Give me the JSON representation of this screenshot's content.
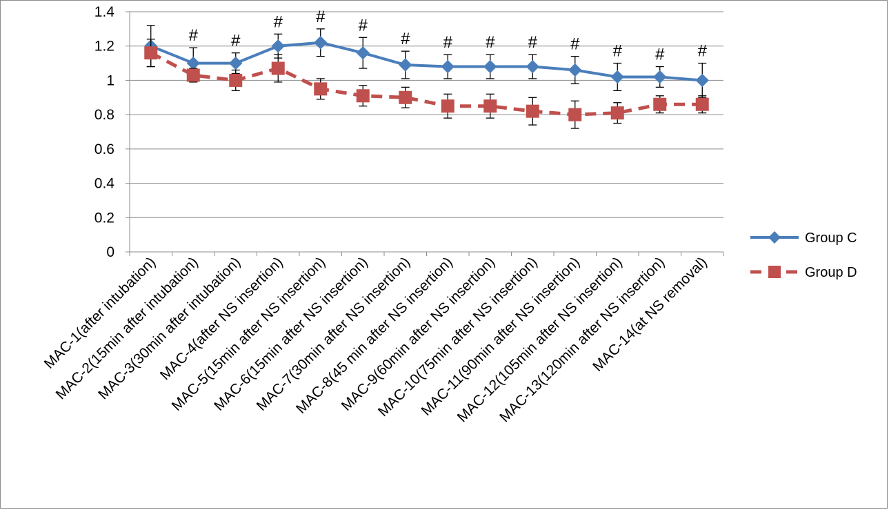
{
  "chart_data": {
    "type": "line",
    "title": "",
    "xlabel": "",
    "ylabel": "",
    "ylim": [
      0,
      1.4
    ],
    "yticks": [
      0,
      0.2,
      0.4,
      0.6,
      0.8,
      1,
      1.2,
      1.4
    ],
    "ytick_labels": [
      "0",
      "0.2",
      "0.4",
      "0.6",
      "0.8",
      "1",
      "1.2",
      "1.4"
    ],
    "grid": "horizontal",
    "legend_position": "right",
    "categories": [
      "MAC-1(after intubation)",
      "MAC-2(15min after intubation)",
      "MAC-3(30min after intubation)",
      "MAC-4(after NS insertion)",
      "MAC-5(15min after NS insertion)",
      "MAC-6(15min after NS insertion)",
      "MAC-7(30min after NS insertion)",
      "MAC-8(45 min after NS insertion)",
      "MAC-9(60min after NS insertion)",
      "MAC-10(75min after NS insertion)",
      "MAC-11(90min after NS insertion)",
      "MAC-12(105min after NS insertion)",
      "MAC-13(120min after NS insertion)",
      "MAC-14(at NS removal)"
    ],
    "series": [
      {
        "name": "Group C",
        "color": "#4a7ebb",
        "marker": "diamond",
        "line_style": "solid",
        "values": [
          1.2,
          1.1,
          1.1,
          1.2,
          1.22,
          1.16,
          1.09,
          1.08,
          1.08,
          1.08,
          1.06,
          1.02,
          1.02,
          1.0
        ],
        "error": [
          0.12,
          0.09,
          0.06,
          0.07,
          0.08,
          0.09,
          0.08,
          0.07,
          0.07,
          0.07,
          0.08,
          0.08,
          0.06,
          0.1
        ]
      },
      {
        "name": "Group D",
        "color": "#c0504d",
        "marker": "square",
        "line_style": "dashed",
        "values": [
          1.16,
          1.03,
          1.0,
          1.07,
          0.95,
          0.91,
          0.9,
          0.85,
          0.85,
          0.82,
          0.8,
          0.81,
          0.86,
          0.86
        ],
        "error": [
          0.08,
          0.04,
          0.06,
          0.08,
          0.06,
          0.06,
          0.06,
          0.07,
          0.07,
          0.08,
          0.08,
          0.06,
          0.05,
          0.05
        ]
      }
    ],
    "annotation_symbol": "#",
    "annotations": [
      {
        "index": 1,
        "text": "#"
      },
      {
        "index": 2,
        "text": "#"
      },
      {
        "index": 3,
        "text": "#"
      },
      {
        "index": 4,
        "text": "#"
      },
      {
        "index": 5,
        "text": "#"
      },
      {
        "index": 6,
        "text": "#"
      },
      {
        "index": 7,
        "text": "#"
      },
      {
        "index": 8,
        "text": "#"
      },
      {
        "index": 9,
        "text": "#"
      },
      {
        "index": 10,
        "text": "#"
      },
      {
        "index": 11,
        "text": "#"
      },
      {
        "index": 12,
        "text": "#"
      },
      {
        "index": 13,
        "text": "#"
      }
    ]
  }
}
